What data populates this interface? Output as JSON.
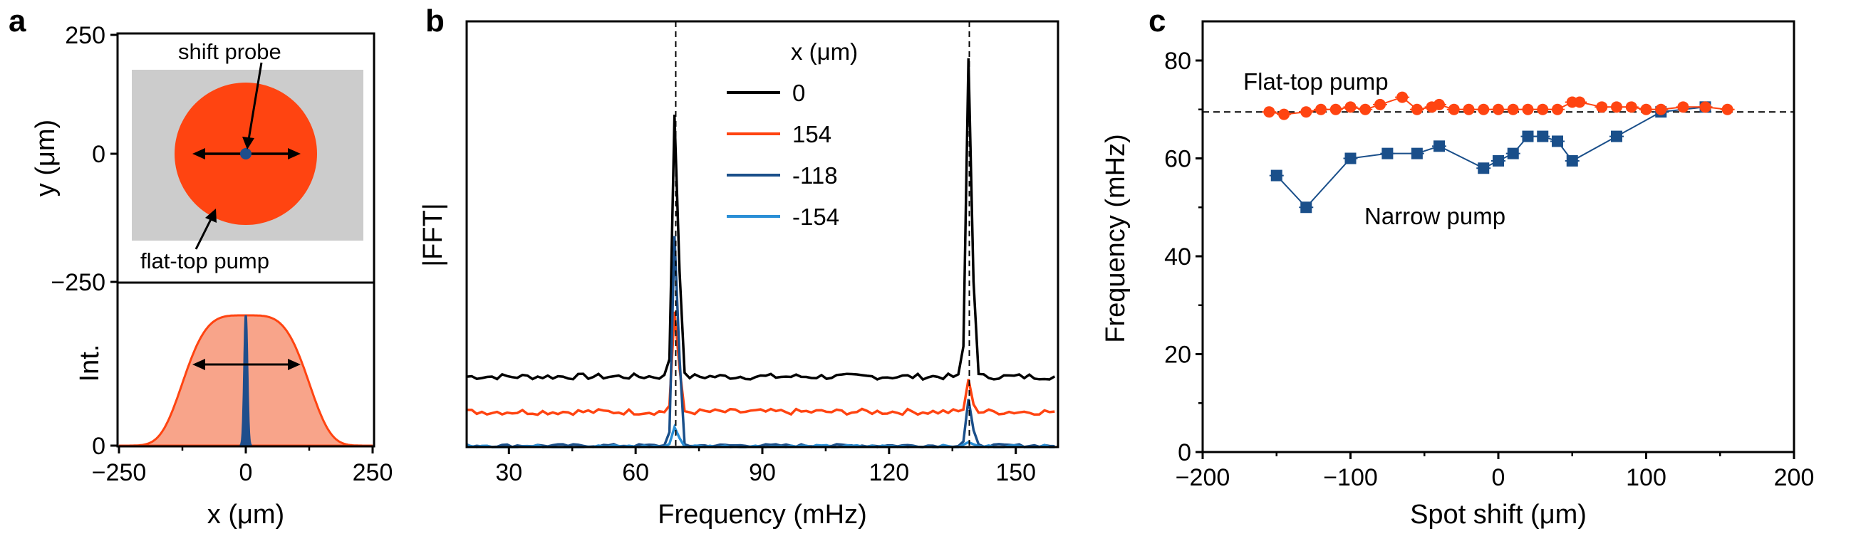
{
  "panel_labels": [
    "a",
    "b",
    "c"
  ],
  "chart_data": [
    {
      "type": "diagram",
      "panel": "a",
      "ylabel": "y (μm)",
      "xlim": [
        -250,
        250
      ],
      "ylim": [
        -250,
        250
      ],
      "yticks": [
        "250",
        "0",
        "−250"
      ],
      "annotations": [
        "shift probe",
        "flat-top pump"
      ],
      "colors": {
        "pump": "#ff4411",
        "background": "#cccccc",
        "probe": "#1f4e8c"
      }
    },
    {
      "type": "area",
      "panel": "a",
      "xlabel": "x (μm)",
      "ylabel": "Int.",
      "xlim": [
        -250,
        250
      ],
      "xticks": [
        "−250",
        "0",
        "250"
      ],
      "yticks": [
        "0"
      ],
      "series": [
        {
          "shape": "flat-top pump",
          "x": [
            -200,
            -150,
            -100,
            -50,
            0,
            50,
            100,
            150,
            200
          ],
          "values": [
            0.02,
            0.45,
            0.9,
            1.0,
            1.0,
            1.0,
            0.9,
            0.45,
            0.02
          ],
          "color": "#ff4411"
        },
        {
          "shape": "narrow probe",
          "x": [
            -6,
            -3,
            0,
            3,
            6
          ],
          "values": [
            0,
            0.6,
            1.0,
            0.6,
            0
          ],
          "color": "#1f4e8c"
        }
      ]
    },
    {
      "type": "line",
      "panel": "b",
      "xlabel": "Frequency (mHz)",
      "ylabel": "|FFT|",
      "xlim": [
        20,
        160
      ],
      "xticks": [
        "30",
        "60",
        "90",
        "120",
        "150"
      ],
      "vlines": [
        69.5,
        139
      ],
      "legend_title": "x (μm)",
      "legend_position": "top-center",
      "series": [
        {
          "name": "0",
          "color": "#000000",
          "baseline": 0.24,
          "peak70": 1.24,
          "peak139": 1.38
        },
        {
          "name": "154",
          "color": "#ff4411",
          "baseline": 0.12,
          "peak70": 0.5,
          "peak139": 0.23
        },
        {
          "name": "-118",
          "color": "#1a4f8a",
          "baseline": 0.005,
          "peak70": 0.8,
          "peak139": 0.17
        },
        {
          "name": "-154",
          "color": "#2a8fd6",
          "baseline": 0.002,
          "peak70": 0.08,
          "peak139": 0.02
        }
      ]
    },
    {
      "type": "scatter",
      "panel": "c",
      "xlabel": "Spot shift (μm)",
      "ylabel": "Frequency (mHz)",
      "xlim": [
        -200,
        200
      ],
      "ylim": [
        0,
        88
      ],
      "xticks": [
        "−200",
        "−100",
        "0",
        "100",
        "200"
      ],
      "yticks": [
        "0",
        "20",
        "40",
        "60",
        "80"
      ],
      "hline": 69.5,
      "annotations": [
        "Flat-top pump",
        "Narrow pump"
      ],
      "series": [
        {
          "name": "Flat-top pump",
          "color": "#ff4411",
          "marker": "circle",
          "x": [
            -155,
            -145,
            -130,
            -120,
            -110,
            -100,
            -90,
            -80,
            -65,
            -55,
            -45,
            -40,
            -30,
            -20,
            -10,
            0,
            10,
            20,
            30,
            40,
            50,
            55,
            70,
            80,
            90,
            100,
            110,
            125,
            140,
            155
          ],
          "y": [
            69.5,
            69,
            69.5,
            70,
            70,
            70.5,
            70,
            71,
            72.5,
            70,
            70.5,
            71,
            70,
            70,
            70,
            70,
            70,
            70,
            70,
            70,
            71.5,
            71.5,
            70.5,
            70.5,
            70.5,
            70,
            70,
            70.5,
            70.5,
            70
          ]
        },
        {
          "name": "Narrow pump",
          "color": "#1a4f8a",
          "marker": "square",
          "x": [
            -150,
            -130,
            -100,
            -75,
            -55,
            -40,
            -10,
            0,
            10,
            20,
            30,
            40,
            50,
            80,
            110,
            140
          ],
          "y": [
            56.5,
            50,
            60,
            61,
            61,
            62.5,
            58,
            59.5,
            61,
            64.5,
            64.5,
            63.5,
            59.5,
            64.5,
            69.5,
            70.5
          ]
        }
      ]
    }
  ]
}
